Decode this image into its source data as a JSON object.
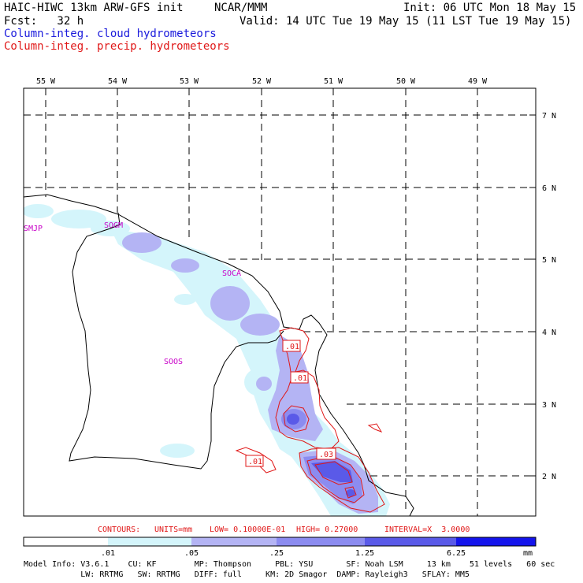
{
  "header": {
    "left1": "HAIC-HIWC 13km ARW-GFS init",
    "center1": "NCAR/MMM",
    "right1": "Init: 06 UTC Mon 18 May 15",
    "left2": "Fcst:   32 h",
    "right2": "Valid: 14 UTC Tue 19 May 15 (11 LST Tue 19 May 15)",
    "legend_cloud": "Column-integ. cloud hydrometeors",
    "legend_precip": "Column-integ. precip. hydrometeors"
  },
  "axes": {
    "lon_labels": [
      "55 W",
      "54 W",
      "53 W",
      "52 W",
      "51 W",
      "50 W",
      "49 W"
    ],
    "lat_labels": [
      "7 N",
      "6 N",
      "5 N",
      "4 N",
      "3 N",
      "2 N"
    ]
  },
  "stations": [
    "SMJP",
    "SOGM",
    "SOCA",
    "SOOS"
  ],
  "contour_labels": [
    ".01",
    ".01",
    ".01",
    ".03"
  ],
  "contour_info": {
    "contours": "CONTOURS:",
    "units": "UNITS=mm",
    "low": "LOW= 0.10000E-01",
    "high": "HIGH= 0.27000",
    "interval": "INTERVAL=X  3.0000"
  },
  "colorbar": {
    "ticks": [
      ".01",
      ".05",
      ".25",
      "1.25",
      "6.25"
    ],
    "unit": "mm",
    "colors": [
      "#ffffff",
      "#d4f5fb",
      "#b4b4f4",
      "#8c8cf0",
      "#5a5ae8",
      "#3434e4",
      "#1414ec"
    ]
  },
  "model_info": {
    "line1": "Model Info: V3.6.1    CU: KF        MP: Thompson     PBL: YSU       SF: Noah LSM     13 km    51 levels   60 sec",
    "line2": "            LW: RRTMG   SW: RRTMG   DIFF: full     KM: 2D Smagor  DAMP: Rayleigh3   SFLAY: MM5"
  }
}
